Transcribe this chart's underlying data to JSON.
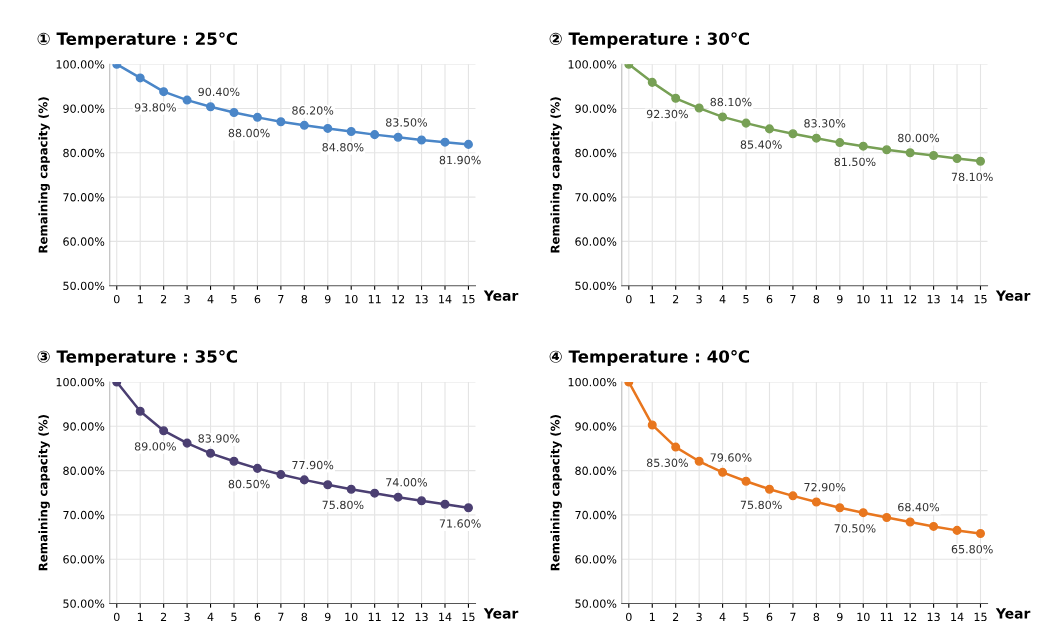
{
  "chart_data": [
    {
      "type": "line",
      "title": "① Temperature : 25℃",
      "xlabel": "Year",
      "ylabel": "Remaining capacity (%)",
      "categories": [
        "0",
        "1",
        "2",
        "3",
        "4",
        "5",
        "6",
        "7",
        "8",
        "9",
        "10",
        "11",
        "12",
        "13",
        "14",
        "15"
      ],
      "ylim": [
        50,
        100
      ],
      "yticks": [
        {
          "value": 50,
          "label": "50.00%"
        },
        {
          "value": 60,
          "label": "60.00%"
        },
        {
          "value": 70,
          "label": "70.00%"
        },
        {
          "value": 80,
          "label": "80.00%"
        },
        {
          "value": 90,
          "label": "90.00%"
        },
        {
          "value": 100,
          "label": "100.00%"
        }
      ],
      "grid": true,
      "marker": "circle",
      "series": [
        {
          "color": "#4a86c8",
          "values": [
            100,
            96.9,
            93.8,
            91.9,
            90.4,
            89.1,
            88.0,
            87.0,
            86.2,
            85.5,
            84.8,
            84.1,
            83.5,
            82.9,
            82.4,
            81.9
          ],
          "value_labels": [
            null,
            null,
            "93.80%",
            null,
            "90.40%",
            null,
            "88.00%",
            null,
            "86.20%",
            null,
            "84.80%",
            null,
            "83.50%",
            null,
            null,
            "81.90%"
          ]
        }
      ]
    },
    {
      "type": "line",
      "title": "② Temperature : 30℃",
      "xlabel": "Year",
      "ylabel": "Remaining capacity (%)",
      "categories": [
        "0",
        "1",
        "2",
        "3",
        "4",
        "5",
        "6",
        "7",
        "8",
        "9",
        "10",
        "11",
        "12",
        "13",
        "14",
        "15"
      ],
      "ylim": [
        50,
        100
      ],
      "yticks": [
        {
          "value": 50,
          "label": "50.00%"
        },
        {
          "value": 60,
          "label": "60.00%"
        },
        {
          "value": 70,
          "label": "70.00%"
        },
        {
          "value": 80,
          "label": "80.00%"
        },
        {
          "value": 90,
          "label": "90.00%"
        },
        {
          "value": 100,
          "label": "100.00%"
        }
      ],
      "grid": true,
      "marker": "circle",
      "series": [
        {
          "color": "#77a055",
          "values": [
            100,
            95.9,
            92.3,
            90.1,
            88.1,
            86.7,
            85.4,
            84.3,
            83.3,
            82.3,
            81.5,
            80.7,
            80.0,
            79.4,
            78.7,
            78.1
          ],
          "value_labels": [
            null,
            null,
            "92.30%",
            null,
            "88.10%",
            null,
            "85.40%",
            null,
            "83.30%",
            null,
            "81.50%",
            null,
            "80.00%",
            null,
            null,
            "78.10%"
          ]
        }
      ]
    },
    {
      "type": "line",
      "title": "③ Temperature : 35℃",
      "xlabel": "Year",
      "ylabel": "Remaining capacity (%)",
      "categories": [
        "0",
        "1",
        "2",
        "3",
        "4",
        "5",
        "6",
        "7",
        "8",
        "9",
        "10",
        "11",
        "12",
        "13",
        "14",
        "15"
      ],
      "ylim": [
        50,
        100
      ],
      "yticks": [
        {
          "value": 50,
          "label": "50.00%"
        },
        {
          "value": 60,
          "label": "60.00%"
        },
        {
          "value": 70,
          "label": "70.00%"
        },
        {
          "value": 80,
          "label": "80.00%"
        },
        {
          "value": 90,
          "label": "90.00%"
        },
        {
          "value": 100,
          "label": "100.00%"
        }
      ],
      "grid": true,
      "marker": "circle",
      "series": [
        {
          "color": "#4b3f72",
          "values": [
            100,
            93.4,
            89.0,
            86.2,
            83.9,
            82.1,
            80.5,
            79.1,
            77.9,
            76.8,
            75.8,
            74.9,
            74.0,
            73.2,
            72.4,
            71.6
          ],
          "value_labels": [
            null,
            null,
            "89.00%",
            null,
            "83.90%",
            null,
            "80.50%",
            null,
            "77.90%",
            null,
            "75.80%",
            null,
            "74.00%",
            null,
            null,
            "71.60%"
          ]
        }
      ]
    },
    {
      "type": "line",
      "title": "④ Temperature : 40℃",
      "xlabel": "Year",
      "ylabel": "Remaining capacity (%)",
      "categories": [
        "0",
        "1",
        "2",
        "3",
        "4",
        "5",
        "6",
        "7",
        "8",
        "9",
        "10",
        "11",
        "12",
        "13",
        "14",
        "15"
      ],
      "ylim": [
        50,
        100
      ],
      "yticks": [
        {
          "value": 50,
          "label": "50.00%"
        },
        {
          "value": 60,
          "label": "60.00%"
        },
        {
          "value": 70,
          "label": "70.00%"
        },
        {
          "value": 80,
          "label": "80.00%"
        },
        {
          "value": 90,
          "label": "90.00%"
        },
        {
          "value": 100,
          "label": "100.00%"
        }
      ],
      "grid": true,
      "marker": "circle",
      "series": [
        {
          "color": "#e8761e",
          "values": [
            100,
            90.3,
            85.3,
            82.1,
            79.6,
            77.6,
            75.8,
            74.3,
            72.9,
            71.6,
            70.5,
            69.4,
            68.4,
            67.4,
            66.5,
            65.8
          ],
          "value_labels": [
            null,
            null,
            "85.30%",
            null,
            "79.60%",
            null,
            "75.80%",
            null,
            "72.90%",
            null,
            "70.50%",
            null,
            "68.40%",
            null,
            null,
            "65.80%"
          ]
        }
      ]
    }
  ]
}
